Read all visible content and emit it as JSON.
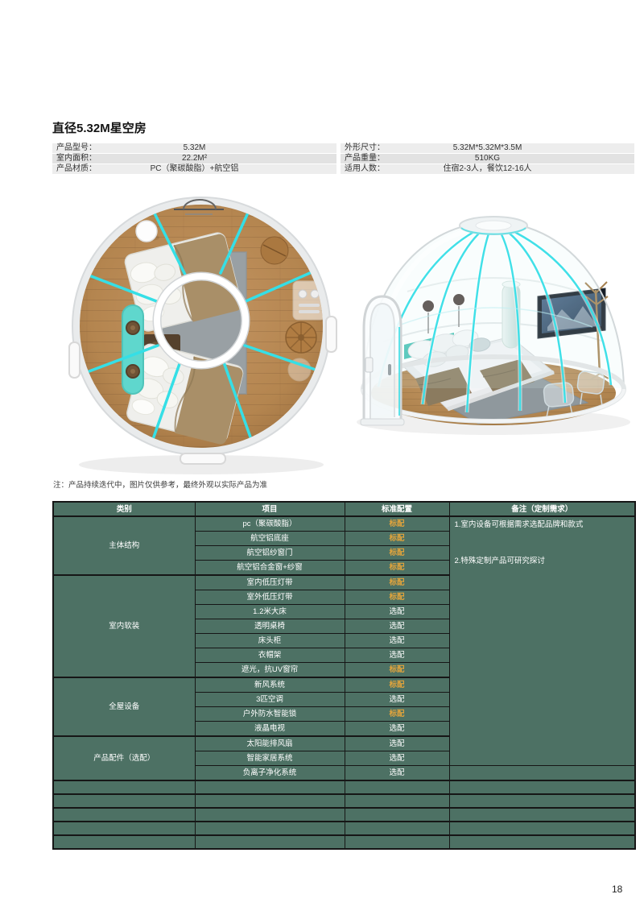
{
  "header": {
    "title": "直径5.32M星空房"
  },
  "specs": {
    "left": [
      {
        "label": "产品型号：",
        "value": "5.32M"
      },
      {
        "label": "室内面积：",
        "value": "22.2M²"
      },
      {
        "label": "产品材质：",
        "value": "PC（聚碳酸脂）+航空铝"
      }
    ],
    "right": [
      {
        "label": "外形尺寸：",
        "value": "5.32M*5.32M*3.5M"
      },
      {
        "label": "产品重量：",
        "value": "510KG"
      },
      {
        "label": "适用人数：",
        "value": "住宿2-3人，餐饮12-16人"
      }
    ]
  },
  "images": {
    "left": "dome-floor-plan-top-view",
    "right": "dome-3d-transparent-render"
  },
  "note": "注：产品持续迭代中，图片仅供参考，最终外观以实际产品为准",
  "config_table": {
    "headers": [
      "类别",
      "项目",
      "标准配置",
      "备注（定制需求）"
    ],
    "standard_label": "标配",
    "optional_label": "选配",
    "remarks": [
      "1.室内设备可根据需求选配品牌和款式",
      "2.特殊定制产品可研究探讨"
    ],
    "remark_rowspan": 17,
    "empty_rows": 5,
    "groups": [
      {
        "category": "主体结构",
        "items": [
          {
            "name": "pc（聚碳酸脂）",
            "config": "标配"
          },
          {
            "name": "航空铝底座",
            "config": "标配"
          },
          {
            "name": "航空铝纱窗门",
            "config": "标配"
          },
          {
            "name": "航空铝合金窗+纱窗",
            "config": "标配"
          }
        ]
      },
      {
        "category": "室内软装",
        "items": [
          {
            "name": "室内低压灯带",
            "config": "标配"
          },
          {
            "name": "室外低压灯带",
            "config": "标配"
          },
          {
            "name": "1.2米大床",
            "config": "选配"
          },
          {
            "name": "透明桌椅",
            "config": "选配"
          },
          {
            "name": "床头柜",
            "config": "选配"
          },
          {
            "name": "衣帽架",
            "config": "选配"
          },
          {
            "name": "遮光，抗UV窗帘",
            "config": "标配"
          }
        ]
      },
      {
        "category": "全屋设备",
        "items": [
          {
            "name": "新风系统",
            "config": "标配"
          },
          {
            "name": "3匹空调",
            "config": "选配"
          },
          {
            "name": "户外防水智能锁",
            "config": "标配"
          },
          {
            "name": "液晶电视",
            "config": "选配"
          }
        ]
      },
      {
        "category": "产品配件（选配）",
        "items": [
          {
            "name": "太阳能排风扇",
            "config": "选配"
          },
          {
            "name": "智能家居系统",
            "config": "选配"
          },
          {
            "name": "负离子净化系统",
            "config": "选配"
          }
        ]
      }
    ],
    "colors": {
      "table_green": "#4d7164",
      "standard_orange": "#e2a43c",
      "accent_cyan": "#38dfe7"
    }
  },
  "page_number": "18"
}
